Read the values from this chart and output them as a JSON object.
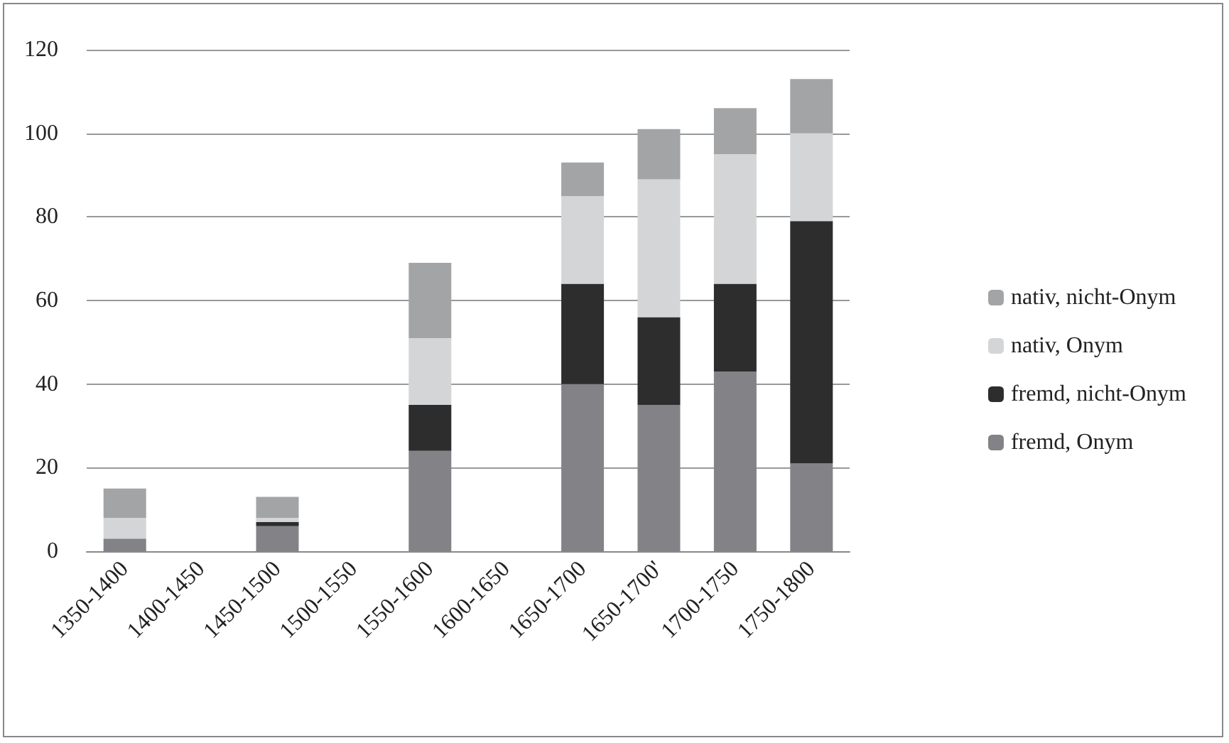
{
  "chart_data": {
    "type": "bar",
    "stacked": true,
    "categories": [
      "1350-1400",
      "1400-1450",
      "1450-1500",
      "1500-1550",
      "1550-1600",
      "1600-1650",
      "1650-1700",
      "1650-1700'",
      "1700-1750",
      "1750-1800"
    ],
    "series": [
      {
        "name": "fremd, Onym",
        "color": "#838387",
        "values": [
          3,
          null,
          6,
          null,
          24,
          null,
          40,
          35,
          43,
          21
        ]
      },
      {
        "name": "fremd, nicht-Onym",
        "color": "#2e2d2e",
        "values": [
          0,
          null,
          1,
          null,
          11,
          null,
          24,
          21,
          21,
          58
        ]
      },
      {
        "name": "nativ, Onym",
        "color": "#d4d5d6",
        "values": [
          5,
          null,
          1,
          null,
          16,
          null,
          21,
          33,
          31,
          21
        ]
      },
      {
        "name": "nativ, nicht-Onym",
        "color": "#a3a4a6",
        "values": [
          7,
          null,
          5,
          null,
          18,
          null,
          8,
          12,
          11,
          13
        ]
      }
    ],
    "ylim": [
      0,
      120
    ],
    "yticks": [
      0,
      20,
      40,
      60,
      80,
      100,
      120
    ],
    "grid": "y",
    "legend": "right"
  }
}
